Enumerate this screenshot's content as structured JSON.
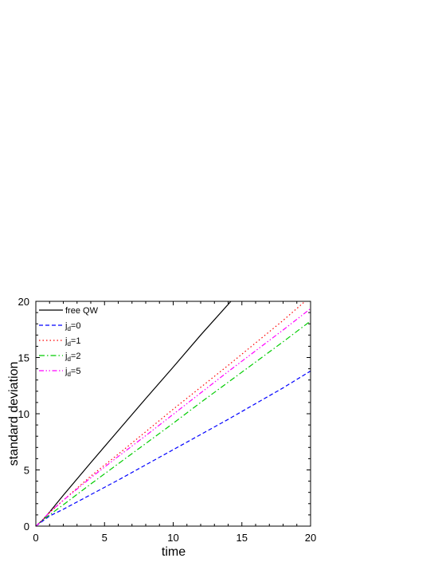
{
  "chart_data": {
    "type": "line",
    "xlabel": "time",
    "ylabel": "standard deviation",
    "xlim": [
      0,
      20
    ],
    "ylim": [
      0,
      20
    ],
    "xticks": [
      0,
      5,
      10,
      15,
      20
    ],
    "yticks": [
      0,
      5,
      10,
      15,
      20
    ],
    "grid": false,
    "legend_position": "top-left",
    "series": [
      {
        "name": "free QW",
        "legend_main": "free QW",
        "legend_sub": "",
        "color": "#000000",
        "style": "solid",
        "x": [
          0,
          0.5,
          1,
          2,
          4,
          6,
          8,
          10,
          12,
          14.2
        ],
        "y": [
          0,
          0.55,
          1.25,
          2.75,
          5.65,
          8.5,
          11.35,
          14.15,
          17.0,
          20.0
        ]
      },
      {
        "name": "jd=0",
        "legend_main": "j",
        "legend_sub": "d",
        "legend_suffix": "=0",
        "color": "#0000ff",
        "style": "dash",
        "x": [
          0,
          0.5,
          1,
          2,
          4,
          6,
          8,
          10,
          12,
          14,
          16,
          18,
          20
        ],
        "y": [
          0,
          0.45,
          0.9,
          1.5,
          2.8,
          4.1,
          5.45,
          6.8,
          8.15,
          9.5,
          10.9,
          12.3,
          13.8
        ]
      },
      {
        "name": "jd=1",
        "legend_main": "j",
        "legend_sub": "d",
        "legend_suffix": "=1",
        "color": "#ff0000",
        "style": "dot",
        "x": [
          0,
          0.5,
          1,
          2,
          4,
          6,
          8,
          10,
          12,
          14,
          16,
          18,
          19.6
        ],
        "y": [
          0,
          0.55,
          1.2,
          2.3,
          4.45,
          6.4,
          8.4,
          10.4,
          12.35,
          14.3,
          16.3,
          18.3,
          20.0
        ]
      },
      {
        "name": "jd=2",
        "legend_main": "j",
        "legend_sub": "d",
        "legend_suffix": "=2",
        "color": "#00cc00",
        "style": "dashdot",
        "x": [
          0,
          0.5,
          1,
          2,
          4,
          6,
          8,
          10,
          12,
          14,
          16,
          18,
          20
        ],
        "y": [
          0,
          0.55,
          1.0,
          1.9,
          3.75,
          5.55,
          7.35,
          9.15,
          11.0,
          12.8,
          14.6,
          16.4,
          18.25
        ]
      },
      {
        "name": "jd=5",
        "legend_main": "j",
        "legend_sub": "d",
        "legend_suffix": "=5",
        "color": "#ff00ff",
        "style": "dashdotdot",
        "x": [
          0,
          0.5,
          1,
          2,
          4,
          6,
          8,
          10,
          12,
          14,
          16,
          18,
          20
        ],
        "y": [
          0,
          0.55,
          1.25,
          2.3,
          4.3,
          6.2,
          8.05,
          9.95,
          11.85,
          13.75,
          15.6,
          17.45,
          19.35
        ]
      }
    ]
  }
}
